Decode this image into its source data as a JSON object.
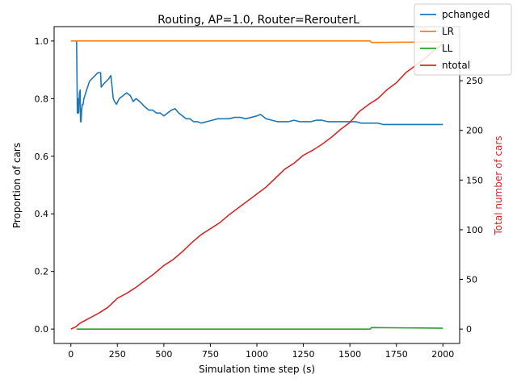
{
  "chart_data": {
    "type": "line",
    "title": "Routing, AP=1.0, Router=RerouterL",
    "xlabel": "Simulation time step (s)",
    "ylabel_left": "Proportion of cars",
    "ylabel_right": "Total number of cars",
    "xlim": [
      -90,
      2090
    ],
    "ylim_left": [
      -0.05,
      1.05
    ],
    "ylim_right": [
      -14.5,
      304.5
    ],
    "x_ticks": [
      "0",
      "250",
      "500",
      "750",
      "1000",
      "1250",
      "1500",
      "1750",
      "2000"
    ],
    "y_left_ticks": [
      "0.0",
      "0.2",
      "0.4",
      "0.6",
      "0.8",
      "1.0"
    ],
    "y_right_ticks": [
      "0",
      "50",
      "100",
      "150",
      "200",
      "250"
    ],
    "legend_position": "top-right",
    "grid": false,
    "series": [
      {
        "name": "pchanged",
        "axis": "left",
        "color": "#1f77b4",
        "x": [
          30,
          31,
          35,
          38,
          42,
          46,
          50,
          52,
          55,
          58,
          62,
          66,
          70,
          80,
          90,
          100,
          115,
          130,
          145,
          160,
          163,
          175,
          190,
          205,
          215,
          220,
          228,
          235,
          245,
          260,
          280,
          300,
          320,
          335,
          350,
          370,
          385,
          400,
          420,
          440,
          460,
          480,
          500,
          520,
          540,
          560,
          580,
          600,
          620,
          640,
          660,
          680,
          700,
          730,
          760,
          790,
          820,
          850,
          880,
          910,
          940,
          970,
          1000,
          1020,
          1050,
          1080,
          1110,
          1140,
          1170,
          1200,
          1230,
          1260,
          1290,
          1320,
          1350,
          1380,
          1410,
          1440,
          1470,
          1500,
          1530,
          1560,
          1590,
          1620,
          1650,
          1680,
          1710,
          1740,
          1770,
          1800,
          1830,
          1860,
          1890,
          1920,
          1950,
          1980,
          2000
        ],
        "values": [
          1.0,
          0.99,
          0.75,
          0.8,
          0.75,
          0.82,
          0.83,
          0.72,
          0.72,
          0.76,
          0.78,
          0.78,
          0.8,
          0.82,
          0.84,
          0.86,
          0.87,
          0.88,
          0.89,
          0.89,
          0.84,
          0.85,
          0.86,
          0.87,
          0.88,
          0.85,
          0.8,
          0.79,
          0.78,
          0.8,
          0.81,
          0.82,
          0.81,
          0.79,
          0.8,
          0.79,
          0.78,
          0.77,
          0.76,
          0.76,
          0.75,
          0.75,
          0.74,
          0.75,
          0.76,
          0.765,
          0.75,
          0.74,
          0.73,
          0.73,
          0.72,
          0.72,
          0.715,
          0.72,
          0.725,
          0.73,
          0.73,
          0.73,
          0.735,
          0.735,
          0.73,
          0.735,
          0.74,
          0.745,
          0.73,
          0.725,
          0.72,
          0.72,
          0.72,
          0.725,
          0.72,
          0.72,
          0.72,
          0.725,
          0.725,
          0.72,
          0.72,
          0.72,
          0.72,
          0.72,
          0.72,
          0.715,
          0.715,
          0.715,
          0.715,
          0.71,
          0.71,
          0.71,
          0.71,
          0.71,
          0.71,
          0.71,
          0.71,
          0.71,
          0.71,
          0.71,
          0.71
        ]
      },
      {
        "name": "LR",
        "axis": "left",
        "color": "#ff7f0e",
        "x": [
          0,
          1610,
          1615,
          2000
        ],
        "values": [
          1.0,
          1.0,
          0.995,
          0.997
        ]
      },
      {
        "name": "LL",
        "axis": "left",
        "color": "#2ca02c",
        "x": [
          30,
          1610,
          1615,
          2000
        ],
        "values": [
          0.0,
          0.0,
          0.005,
          0.003
        ]
      },
      {
        "name": "ntotal",
        "axis": "right",
        "color": "#d62728",
        "x": [
          0,
          25,
          50,
          100,
          150,
          200,
          250,
          300,
          350,
          400,
          450,
          500,
          550,
          600,
          650,
          700,
          750,
          800,
          850,
          900,
          950,
          1000,
          1050,
          1100,
          1150,
          1200,
          1250,
          1300,
          1350,
          1400,
          1450,
          1500,
          1550,
          1600,
          1650,
          1700,
          1750,
          1800,
          1850,
          1900,
          1950,
          2000
        ],
        "values": [
          0,
          2,
          6,
          11,
          16,
          22,
          31,
          36,
          42,
          49,
          56,
          64,
          70,
          78,
          87,
          95,
          101,
          107,
          115,
          122,
          129,
          136,
          143,
          152,
          161,
          167,
          175,
          180,
          186,
          193,
          201,
          208,
          219,
          226,
          232,
          241,
          248,
          258,
          265,
          272,
          280,
          287
        ]
      }
    ]
  }
}
